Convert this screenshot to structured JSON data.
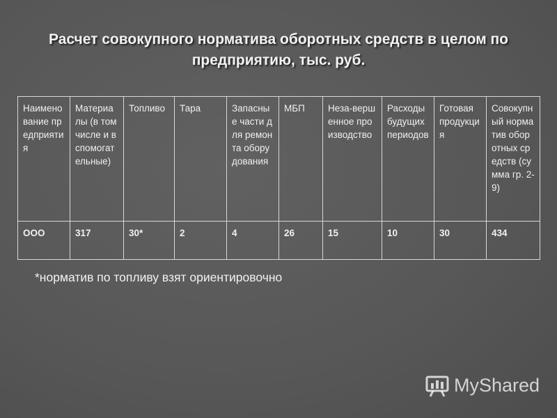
{
  "title": "Расчет совокупного норматива оборотных средств в целом по предприятию, тыс. руб.",
  "table": {
    "header": [
      "Наименование предприятия",
      "Материалы (в том числе и вспомогательные)",
      "Топливо",
      "Тара",
      "Запасные части для ремонта оборудования",
      "МБП",
      "Неза-вершенное производство",
      "Расходы будущих периодов",
      "Готовая продукция",
      "Совокупный норматив оборотных средств (сумма гр. 2-9)"
    ],
    "rows": [
      [
        "ООО",
        "317",
        "30*",
        "2",
        "4",
        "26",
        "15",
        "10",
        "30",
        "434"
      ]
    ]
  },
  "footnote": "*норматив по топливу взят ориентировочно",
  "watermark": "MyShared"
}
